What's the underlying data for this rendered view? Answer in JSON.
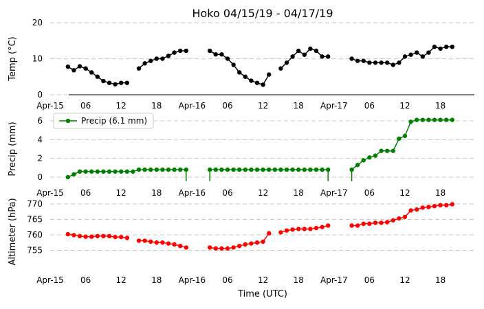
{
  "title": "Hoko 04/15/19 - 04/17/19",
  "xlabel": "Time (UTC)",
  "x_ticks": [
    "Apr-15",
    "06",
    "12",
    "18",
    "Apr-16",
    "06",
    "12",
    "18",
    "Apr-17",
    "06",
    "12",
    "18"
  ],
  "chart_data": [
    {
      "type": "line",
      "ylabel": "Temp (°C)",
      "ylim": [
        0,
        20
      ],
      "yticks": [
        0,
        10,
        20
      ],
      "grid": true,
      "series": [
        {
          "color": "#000000",
          "x": [
            3,
            4,
            5,
            6,
            7,
            8,
            9,
            10,
            11,
            12,
            13,
            15,
            16,
            17,
            18,
            19,
            20,
            21,
            22,
            23,
            27,
            28,
            29,
            30,
            31,
            32,
            33,
            34,
            35,
            36,
            37,
            39,
            40,
            41,
            42,
            43,
            44,
            45,
            46,
            47,
            51,
            52,
            53,
            54,
            55,
            56,
            57,
            58,
            59,
            60,
            61,
            62,
            63,
            64,
            65,
            66,
            67,
            68
          ],
          "y": [
            7.8,
            6.8,
            7.9,
            7.3,
            6.2,
            5.0,
            3.8,
            3.3,
            2.9,
            3.3,
            3.3,
            7.3,
            8.7,
            9.4,
            10.0,
            10.0,
            10.8,
            11.7,
            12.2,
            12.2,
            12.2,
            11.2,
            11.2,
            10.0,
            8.3,
            6.2,
            5.0,
            3.9,
            3.3,
            2.8,
            5.6,
            7.3,
            8.9,
            10.6,
            12.2,
            11.1,
            12.8,
            12.2,
            10.6,
            10.6,
            10.0,
            9.4,
            9.4,
            8.9,
            8.9,
            8.9,
            8.9,
            8.3,
            8.9,
            10.6,
            11.1,
            11.7,
            10.6,
            11.7,
            13.3,
            12.8,
            13.3,
            13.3
          ]
        }
      ]
    },
    {
      "type": "line",
      "ylabel": "Precip (mm)",
      "ylim": [
        0,
        6
      ],
      "yticks": [
        0,
        2,
        4,
        6
      ],
      "grid": true,
      "legend": {
        "label": "Precip (6.1 mm)",
        "placement": "top-left"
      },
      "series": [
        {
          "name": "Precip (6.1 mm)",
          "color": "#008000",
          "x": [
            3,
            4,
            5,
            6,
            7,
            8,
            9,
            10,
            11,
            12,
            13,
            14,
            15,
            16,
            17,
            18,
            19,
            20,
            21,
            22,
            23,
            27,
            28,
            29,
            30,
            31,
            32,
            33,
            34,
            35,
            36,
            37,
            38,
            39,
            40,
            41,
            42,
            43,
            44,
            45,
            46,
            47,
            51,
            52,
            53,
            54,
            55,
            56,
            57,
            58,
            59,
            60,
            61,
            62,
            63,
            64,
            65,
            66,
            67,
            68
          ],
          "y": [
            0.0,
            0.3,
            0.6,
            0.6,
            0.6,
            0.6,
            0.6,
            0.6,
            0.6,
            0.6,
            0.6,
            0.6,
            0.8,
            0.8,
            0.8,
            0.8,
            0.8,
            0.8,
            0.8,
            0.8,
            0.8,
            0.8,
            0.8,
            0.8,
            0.8,
            0.8,
            0.8,
            0.8,
            0.8,
            0.8,
            0.8,
            0.8,
            0.8,
            0.8,
            0.8,
            0.8,
            0.8,
            0.8,
            0.8,
            0.8,
            0.8,
            0.8,
            0.8,
            1.3,
            1.8,
            2.1,
            2.3,
            2.8,
            2.8,
            2.8,
            4.1,
            4.4,
            5.9,
            6.1,
            6.1,
            6.1,
            6.1,
            6.1,
            6.1,
            6.1
          ]
        }
      ]
    },
    {
      "type": "line",
      "ylabel": "Altimeter (hPa)",
      "ylim": [
        752,
        770
      ],
      "yticks": [
        755,
        760,
        765,
        770
      ],
      "grid": true,
      "series": [
        {
          "color": "#ff0000",
          "x": [
            3,
            4,
            5,
            6,
            7,
            8,
            9,
            10,
            11,
            12,
            13,
            15,
            16,
            17,
            18,
            19,
            20,
            21,
            22,
            23,
            27,
            28,
            29,
            30,
            31,
            32,
            33,
            34,
            35,
            36,
            37,
            39,
            40,
            41,
            42,
            43,
            44,
            45,
            46,
            47,
            51,
            52,
            53,
            54,
            55,
            56,
            57,
            58,
            59,
            60,
            61,
            62,
            63,
            64,
            65,
            66,
            67,
            68
          ],
          "y": [
            760.2,
            759.9,
            759.6,
            759.4,
            759.4,
            759.6,
            759.6,
            759.6,
            759.3,
            759.3,
            759.0,
            758.1,
            758.1,
            757.8,
            757.5,
            757.5,
            757.2,
            756.9,
            756.4,
            755.9,
            755.9,
            755.6,
            755.6,
            755.6,
            755.9,
            756.4,
            756.9,
            757.2,
            757.5,
            757.8,
            760.5,
            760.8,
            761.4,
            761.7,
            761.9,
            761.9,
            761.9,
            762.2,
            762.5,
            763.0,
            763.0,
            763.0,
            763.6,
            763.6,
            763.9,
            763.9,
            764.1,
            764.7,
            765.3,
            765.8,
            767.9,
            768.2,
            768.8,
            769.0,
            769.3,
            769.6,
            769.6,
            769.9
          ]
        }
      ]
    }
  ]
}
